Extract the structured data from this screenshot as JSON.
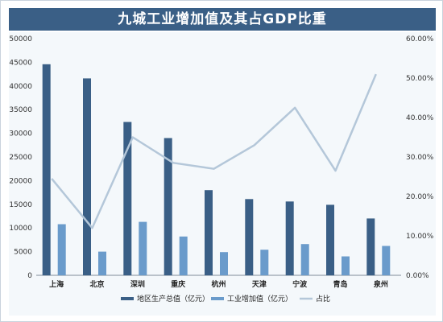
{
  "chart_data": {
    "type": "bar",
    "title": "九城工业增加值及其占GDP比重",
    "categories": [
      "上海",
      "北京",
      "深圳",
      "重庆",
      "杭州",
      "天津",
      "宁波",
      "青岛",
      "泉州"
    ],
    "series": [
      {
        "name": "地区生产总值（亿元）",
        "axis": "left",
        "render": "bar",
        "color": "#3a5f86",
        "values": [
          44600,
          41600,
          32400,
          29000,
          18000,
          16100,
          15600,
          14900,
          12000
        ]
      },
      {
        "name": "工业增加值（亿元）",
        "axis": "left",
        "render": "bar",
        "color": "#6a9bcb",
        "values": [
          10800,
          5000,
          11300,
          8200,
          4900,
          5400,
          6600,
          4000,
          6200
        ]
      },
      {
        "name": "占比",
        "axis": "right",
        "render": "line",
        "color": "#b4c7d9",
        "values": [
          0.245,
          0.12,
          0.35,
          0.285,
          0.27,
          0.33,
          0.425,
          0.265,
          0.51
        ]
      }
    ],
    "y_left": {
      "ylim": [
        0,
        50000
      ],
      "ticks": [
        "0",
        "5000",
        "10000",
        "15000",
        "20000",
        "25000",
        "30000",
        "35000",
        "40000",
        "45000",
        "50000"
      ]
    },
    "y_right": {
      "ylim": [
        0,
        0.6
      ],
      "ticks": [
        "0.00%",
        "10.00%",
        "20.00%",
        "30.00%",
        "40.00%",
        "50.00%",
        "60.00%"
      ]
    },
    "grid": false,
    "legend_position": "bottom"
  }
}
